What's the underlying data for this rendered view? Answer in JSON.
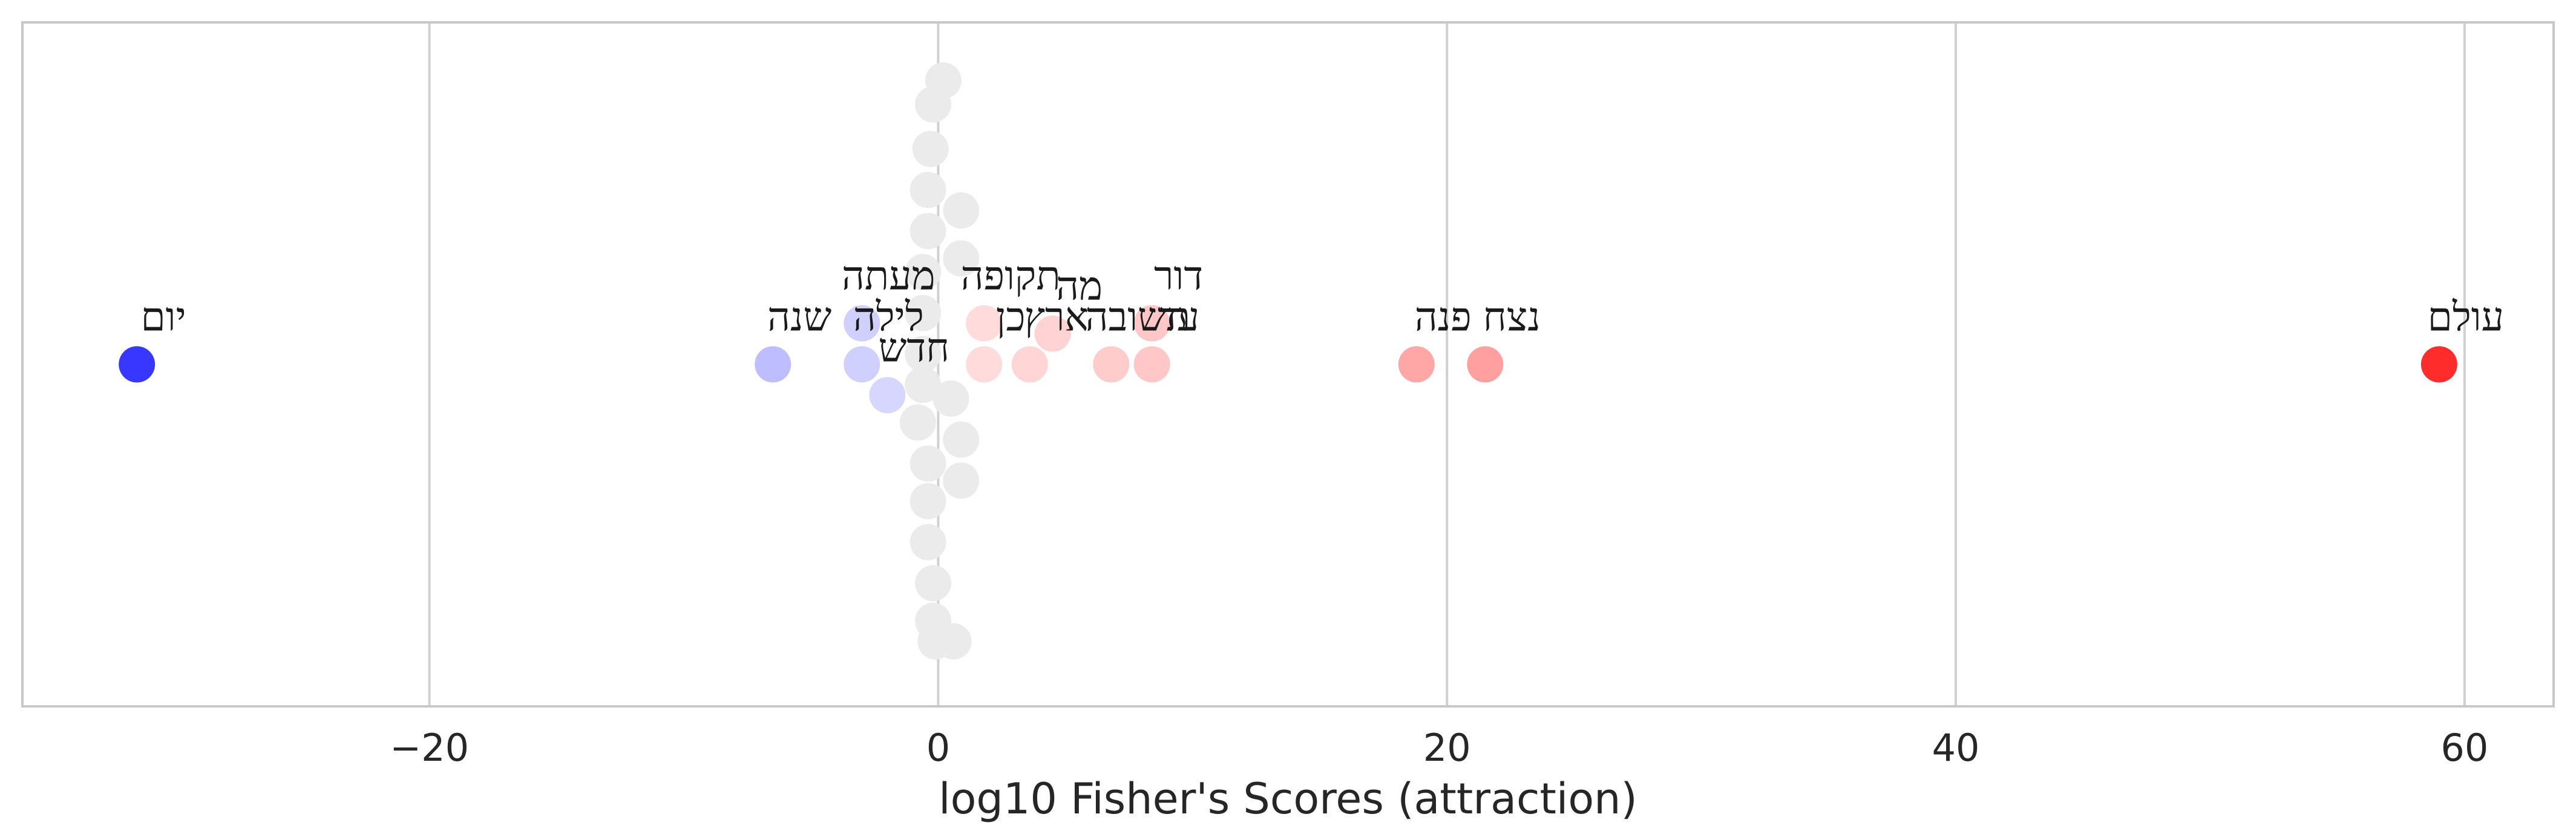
{
  "chart_data": {
    "type": "scatter",
    "xlabel": "log10 Fisher's Scores (attraction)",
    "xlim": [
      -36,
      63.5
    ],
    "ylim": [
      -1,
      1
    ],
    "xticks": [
      -20,
      0,
      20,
      40,
      60
    ],
    "xtick_labels": [
      "−20",
      "0",
      "20",
      "40",
      "60"
    ],
    "grid": "x",
    "colors": {
      "negative": "#0000ff",
      "positive": "#ff0000",
      "neutral": "#ebebeb",
      "grid": "#d0d0d0",
      "frame": "#c8c8c8"
    },
    "points": [
      {
        "x": -31.5,
        "y": 0.0,
        "label": "יום"
      },
      {
        "x": -6.5,
        "y": 0.0,
        "label": "שנה"
      },
      {
        "x": -3.0,
        "y": 0.0,
        "label": "לילה"
      },
      {
        "x": -3.0,
        "y": 0.12,
        "label": "מעתה"
      },
      {
        "x": -2.0,
        "y": -0.09,
        "label": "חדש"
      },
      {
        "x": 1.8,
        "y": 0.0,
        "label": "כן"
      },
      {
        "x": 1.8,
        "y": 0.12,
        "label": "תקופה"
      },
      {
        "x": 3.6,
        "y": 0.0,
        "label": "ארץ"
      },
      {
        "x": 4.5,
        "y": 0.09,
        "label": "מה"
      },
      {
        "x": 6.8,
        "y": 0.0,
        "label": "תשובה"
      },
      {
        "x": 8.4,
        "y": 0.0,
        "label": "עד"
      },
      {
        "x": 8.4,
        "y": 0.12,
        "label": "דור"
      },
      {
        "x": 18.8,
        "y": 0.0,
        "label": "פנה"
      },
      {
        "x": 21.5,
        "y": 0.0,
        "label": "נצח"
      },
      {
        "x": 59.0,
        "y": 0.0,
        "label": "עולם"
      }
    ],
    "neutral_points": [
      {
        "x": 0.2,
        "y": 0.83
      },
      {
        "x": -0.2,
        "y": 0.76
      },
      {
        "x": -0.3,
        "y": 0.63
      },
      {
        "x": -0.4,
        "y": 0.51
      },
      {
        "x": 0.9,
        "y": 0.45
      },
      {
        "x": -0.4,
        "y": 0.39
      },
      {
        "x": 0.9,
        "y": 0.31
      },
      {
        "x": -0.6,
        "y": 0.27
      },
      {
        "x": -0.6,
        "y": 0.15
      },
      {
        "x": -0.6,
        "y": 0.03
      },
      {
        "x": -0.6,
        "y": -0.06
      },
      {
        "x": 0.5,
        "y": -0.1
      },
      {
        "x": -0.8,
        "y": -0.17
      },
      {
        "x": 0.9,
        "y": -0.22
      },
      {
        "x": -0.4,
        "y": -0.29
      },
      {
        "x": 0.9,
        "y": -0.34
      },
      {
        "x": -0.4,
        "y": -0.4
      },
      {
        "x": -0.4,
        "y": -0.52
      },
      {
        "x": -0.2,
        "y": -0.64
      },
      {
        "x": -0.2,
        "y": -0.75
      },
      {
        "x": 0.6,
        "y": -0.81
      },
      {
        "x": -0.1,
        "y": -0.81
      }
    ]
  }
}
